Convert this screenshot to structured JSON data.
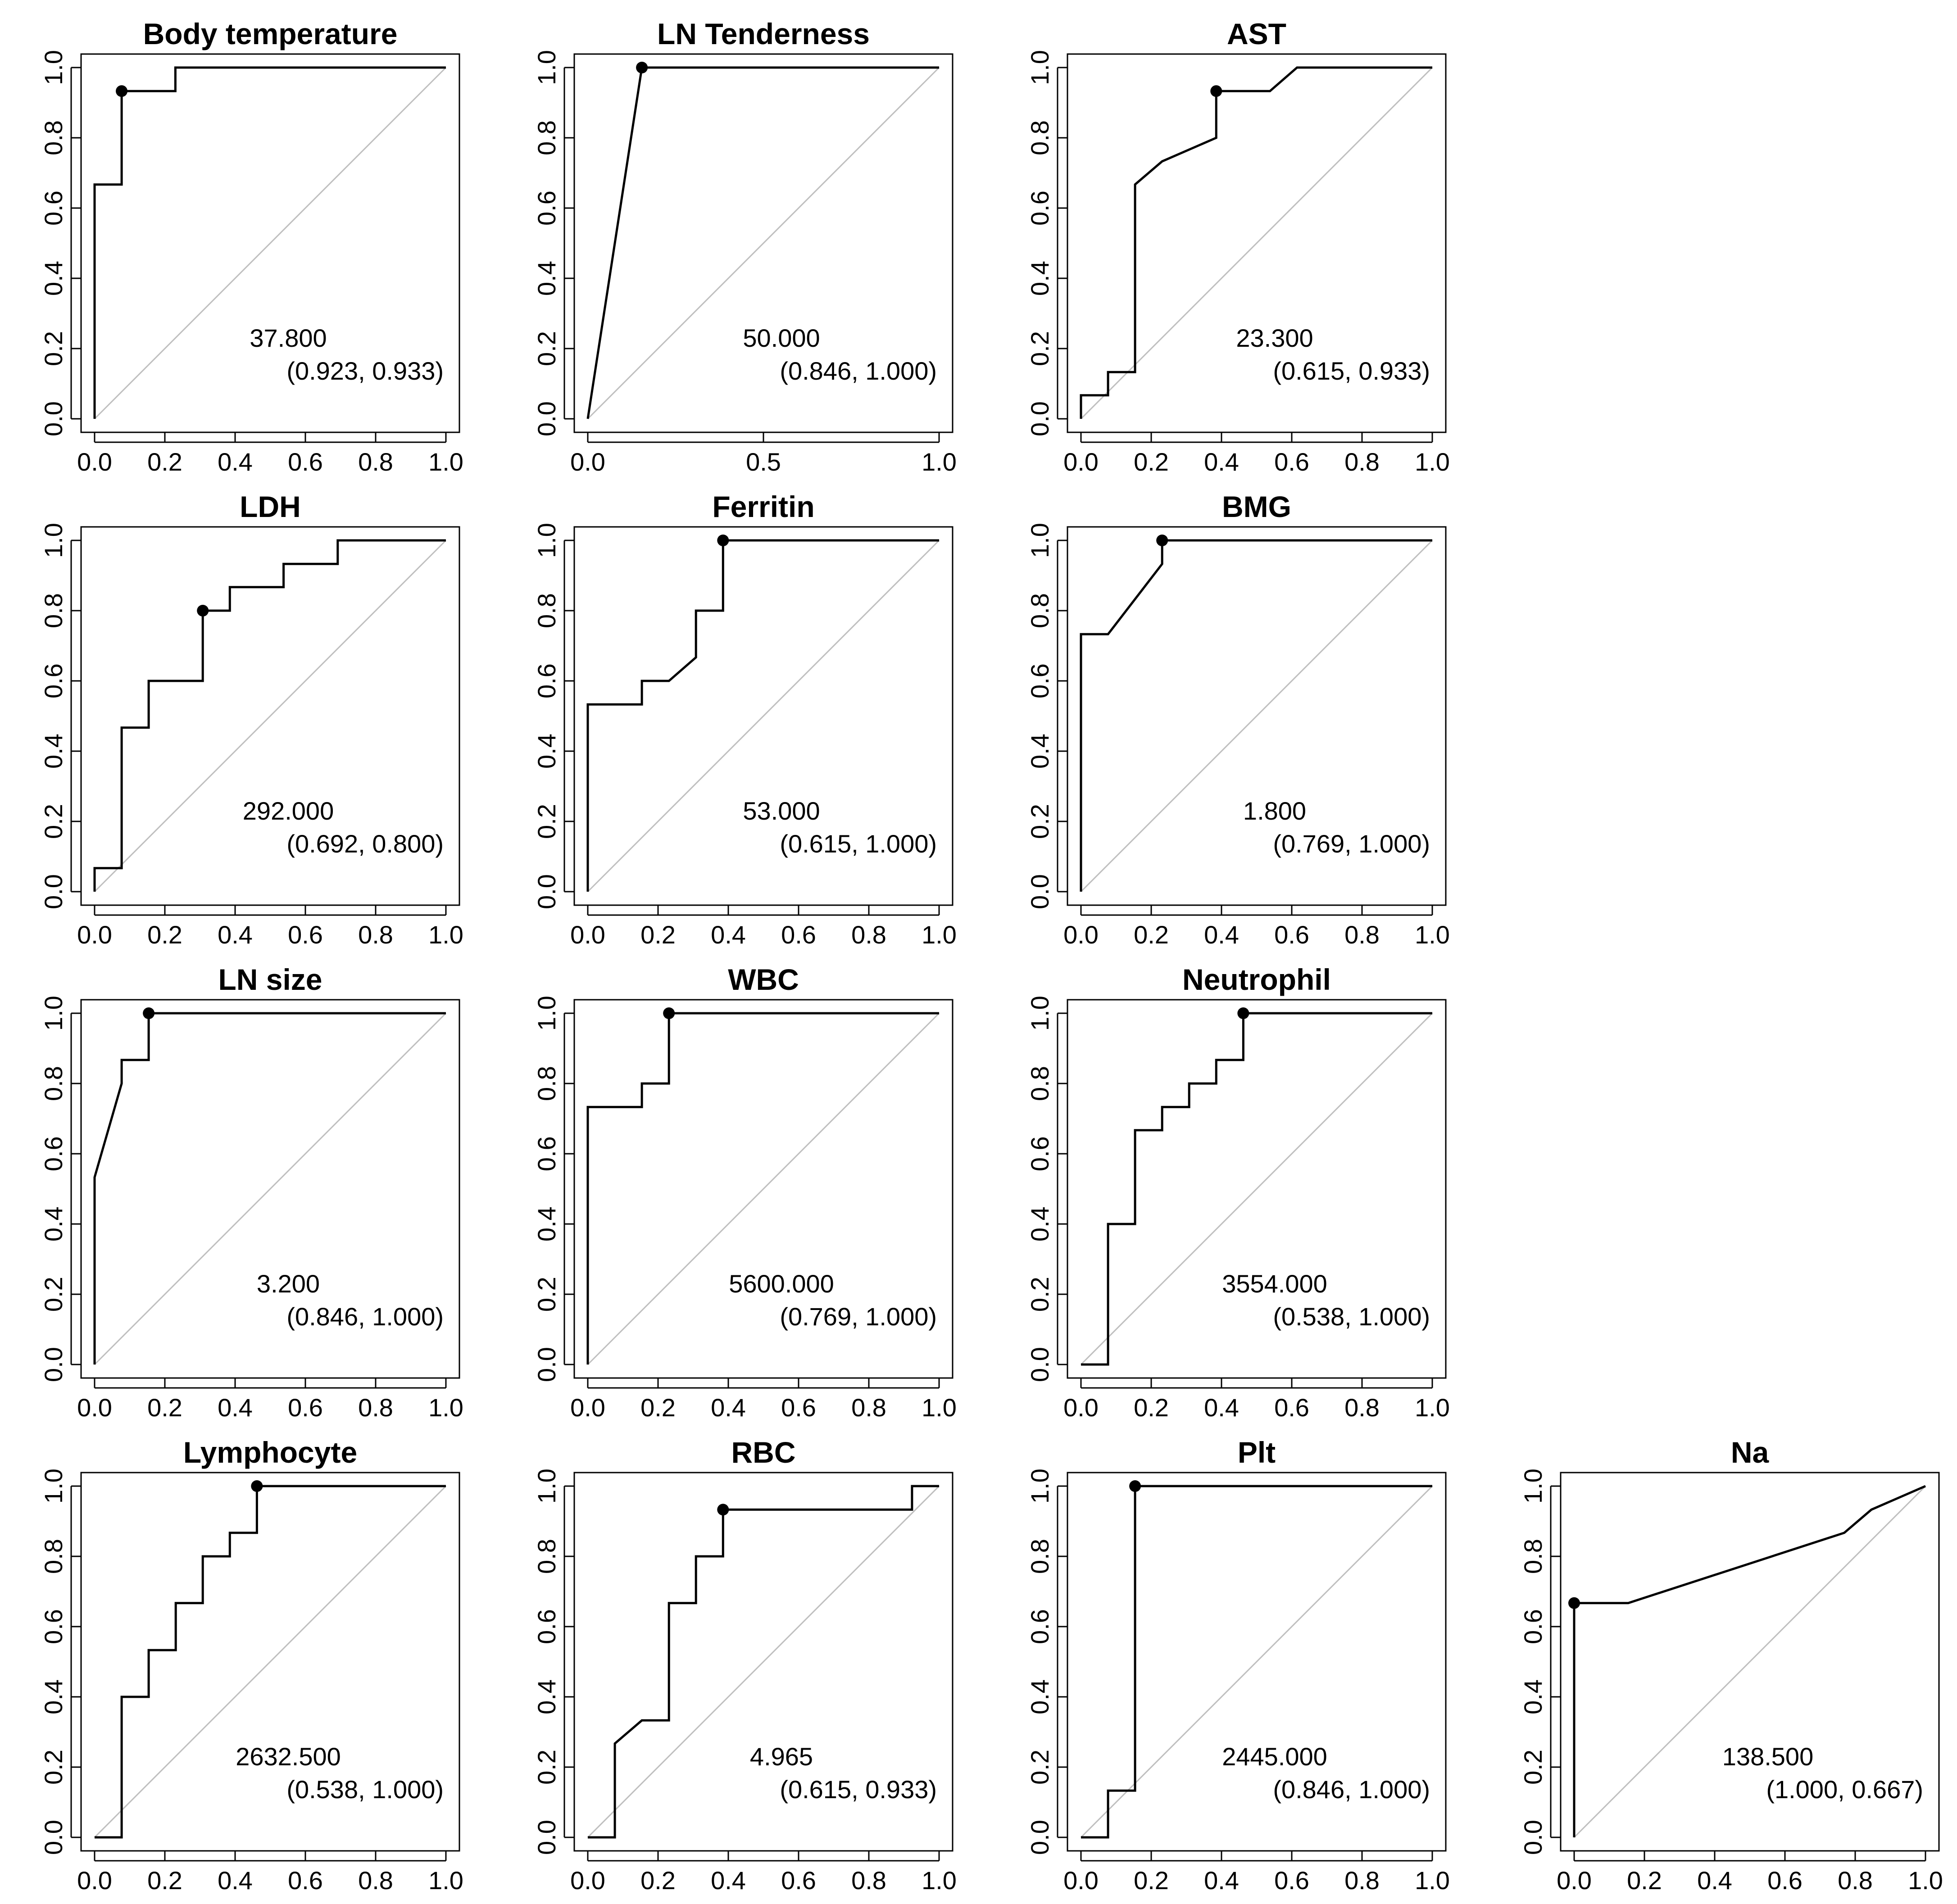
{
  "figure": {
    "colors": {
      "curve": "#000000",
      "diagonal": "#bfbfbf",
      "frame": "#000000",
      "background": "#ffffff"
    }
  },
  "chart_data": [
    {
      "type": "line",
      "id": "body-temperature",
      "title": "Body temperature",
      "xlim": [
        0,
        1
      ],
      "ylim": [
        0,
        1
      ],
      "xticks": [
        "0.0",
        "0.2",
        "0.4",
        "0.6",
        "0.8",
        "1.0"
      ],
      "yticks": [
        "0.0",
        "0.2",
        "0.4",
        "0.6",
        "0.8",
        "1.0"
      ],
      "curve": {
        "x": [
          0,
          0,
          0.077,
          0.077,
          0.23,
          0.23,
          1
        ],
        "y": [
          0,
          0.667,
          0.667,
          0.933,
          0.933,
          1,
          1
        ]
      },
      "point": {
        "x": 0.077,
        "y": 0.933
      },
      "threshold": "37.800",
      "spec_sens": "(0.923, 0.933)"
    },
    {
      "type": "line",
      "id": "ln-tenderness",
      "title": "LN Tenderness",
      "xlim": [
        0,
        1
      ],
      "ylim": [
        0,
        1
      ],
      "xticks": [
        "0.0",
        "0.5",
        "1.0"
      ],
      "yticks": [
        "0.0",
        "0.2",
        "0.4",
        "0.6",
        "0.8",
        "1.0"
      ],
      "curve": {
        "x": [
          0,
          0.154,
          1
        ],
        "y": [
          0,
          1,
          1
        ]
      },
      "point": {
        "x": 0.154,
        "y": 1
      },
      "threshold": "50.000",
      "spec_sens": "(0.846, 1.000)"
    },
    {
      "type": "line",
      "id": "ast",
      "title": "AST",
      "xlim": [
        0,
        1
      ],
      "ylim": [
        0,
        1
      ],
      "xticks": [
        "0.0",
        "0.2",
        "0.4",
        "0.6",
        "0.8",
        "1.0"
      ],
      "yticks": [
        "0.0",
        "0.2",
        "0.4",
        "0.6",
        "0.8",
        "1.0"
      ],
      "curve": {
        "x": [
          0,
          0,
          0.077,
          0.077,
          0.154,
          0.154,
          0.231,
          0.385,
          0.385,
          0.538,
          0.615,
          1
        ],
        "y": [
          0,
          0.067,
          0.067,
          0.133,
          0.133,
          0.667,
          0.733,
          0.8,
          0.933,
          0.933,
          1,
          1
        ]
      },
      "point": {
        "x": 0.385,
        "y": 0.933
      },
      "threshold": "23.300",
      "spec_sens": "(0.615, 0.933)"
    },
    {
      "type": "line",
      "id": "ldh",
      "title": "LDH",
      "xlim": [
        0,
        1
      ],
      "ylim": [
        0,
        1
      ],
      "xticks": [
        "0.0",
        "0.2",
        "0.4",
        "0.6",
        "0.8",
        "1.0"
      ],
      "yticks": [
        "0.0",
        "0.2",
        "0.4",
        "0.6",
        "0.8",
        "1.0"
      ],
      "curve": {
        "x": [
          0,
          0,
          0.077,
          0.077,
          0.154,
          0.154,
          0.308,
          0.308,
          0.385,
          0.385,
          0.538,
          0.538,
          0.692,
          0.692,
          1
        ],
        "y": [
          0,
          0.067,
          0.067,
          0.467,
          0.467,
          0.6,
          0.6,
          0.8,
          0.8,
          0.867,
          0.867,
          0.933,
          0.933,
          1,
          1
        ]
      },
      "point": {
        "x": 0.308,
        "y": 0.8
      },
      "threshold": "292.000",
      "spec_sens": "(0.692, 0.800)"
    },
    {
      "type": "line",
      "id": "ferritin",
      "title": "Ferritin",
      "xlim": [
        0,
        1
      ],
      "ylim": [
        0,
        1
      ],
      "xticks": [
        "0.0",
        "0.2",
        "0.4",
        "0.6",
        "0.8",
        "1.0"
      ],
      "yticks": [
        "0.0",
        "0.2",
        "0.4",
        "0.6",
        "0.8",
        "1.0"
      ],
      "curve": {
        "x": [
          0,
          0,
          0.154,
          0.154,
          0.231,
          0.308,
          0.308,
          0.385,
          0.385,
          1
        ],
        "y": [
          0,
          0.533,
          0.533,
          0.6,
          0.6,
          0.667,
          0.8,
          0.8,
          1,
          1
        ]
      },
      "point": {
        "x": 0.385,
        "y": 1
      },
      "threshold": "53.000",
      "spec_sens": "(0.615, 1.000)"
    },
    {
      "type": "line",
      "id": "bmg",
      "title": "BMG",
      "xlim": [
        0,
        1
      ],
      "ylim": [
        0,
        1
      ],
      "xticks": [
        "0.0",
        "0.2",
        "0.4",
        "0.6",
        "0.8",
        "1.0"
      ],
      "yticks": [
        "0.0",
        "0.2",
        "0.4",
        "0.6",
        "0.8",
        "1.0"
      ],
      "curve": {
        "x": [
          0,
          0,
          0.077,
          0.231,
          0.231,
          1
        ],
        "y": [
          0,
          0.733,
          0.733,
          0.933,
          1,
          1
        ]
      },
      "point": {
        "x": 0.231,
        "y": 1
      },
      "threshold": "1.800",
      "spec_sens": "(0.769, 1.000)"
    },
    {
      "type": "line",
      "id": "ln-size",
      "title": "LN size",
      "xlim": [
        0,
        1
      ],
      "ylim": [
        0,
        1
      ],
      "xticks": [
        "0.0",
        "0.2",
        "0.4",
        "0.6",
        "0.8",
        "1.0"
      ],
      "yticks": [
        "0.0",
        "0.2",
        "0.4",
        "0.6",
        "0.8",
        "1.0"
      ],
      "curve": {
        "x": [
          0,
          0,
          0.077,
          0.077,
          0.154,
          0.154,
          1
        ],
        "y": [
          0,
          0.533,
          0.8,
          0.867,
          0.867,
          1,
          1
        ]
      },
      "point": {
        "x": 0.154,
        "y": 1
      },
      "threshold": "3.200",
      "spec_sens": "(0.846, 1.000)"
    },
    {
      "type": "line",
      "id": "wbc",
      "title": "WBC",
      "xlim": [
        0,
        1
      ],
      "ylim": [
        0,
        1
      ],
      "xticks": [
        "0.0",
        "0.2",
        "0.4",
        "0.6",
        "0.8",
        "1.0"
      ],
      "yticks": [
        "0.0",
        "0.2",
        "0.4",
        "0.6",
        "0.8",
        "1.0"
      ],
      "curve": {
        "x": [
          0,
          0,
          0.154,
          0.154,
          0.231,
          0.231,
          1
        ],
        "y": [
          0,
          0.733,
          0.733,
          0.8,
          0.8,
          1,
          1
        ]
      },
      "point": {
        "x": 0.231,
        "y": 1
      },
      "threshold": "5600.000",
      "spec_sens": "(0.769, 1.000)"
    },
    {
      "type": "line",
      "id": "neutrophil",
      "title": "Neutrophil",
      "xlim": [
        0,
        1
      ],
      "ylim": [
        0,
        1
      ],
      "xticks": [
        "0.0",
        "0.2",
        "0.4",
        "0.6",
        "0.8",
        "1.0"
      ],
      "yticks": [
        "0.0",
        "0.2",
        "0.4",
        "0.6",
        "0.8",
        "1.0"
      ],
      "curve": {
        "x": [
          0,
          0.077,
          0.077,
          0.154,
          0.154,
          0.231,
          0.231,
          0.308,
          0.308,
          0.385,
          0.385,
          0.462,
          0.462,
          1
        ],
        "y": [
          0,
          0,
          0.4,
          0.4,
          0.667,
          0.667,
          0.733,
          0.733,
          0.8,
          0.8,
          0.867,
          0.867,
          1,
          1
        ]
      },
      "point": {
        "x": 0.462,
        "y": 1
      },
      "threshold": "3554.000",
      "spec_sens": "(0.538, 1.000)"
    },
    {
      "type": "line",
      "id": "lymphocyte",
      "title": "Lymphocyte",
      "xlim": [
        0,
        1
      ],
      "ylim": [
        0,
        1
      ],
      "xticks": [
        "0.0",
        "0.2",
        "0.4",
        "0.6",
        "0.8",
        "1.0"
      ],
      "yticks": [
        "0.0",
        "0.2",
        "0.4",
        "0.6",
        "0.8",
        "1.0"
      ],
      "curve": {
        "x": [
          0,
          0.077,
          0.077,
          0.154,
          0.154,
          0.231,
          0.231,
          0.308,
          0.308,
          0.385,
          0.385,
          0.462,
          0.462,
          1
        ],
        "y": [
          0,
          0,
          0.4,
          0.4,
          0.533,
          0.533,
          0.667,
          0.667,
          0.8,
          0.8,
          0.867,
          0.867,
          1,
          1
        ]
      },
      "point": {
        "x": 0.462,
        "y": 1
      },
      "threshold": "2632.500",
      "spec_sens": "(0.538, 1.000)"
    },
    {
      "type": "line",
      "id": "rbc",
      "title": "RBC",
      "xlim": [
        0,
        1
      ],
      "ylim": [
        0,
        1
      ],
      "xticks": [
        "0.0",
        "0.2",
        "0.4",
        "0.6",
        "0.8",
        "1.0"
      ],
      "yticks": [
        "0.0",
        "0.2",
        "0.4",
        "0.6",
        "0.8",
        "1.0"
      ],
      "curve": {
        "x": [
          0,
          0.077,
          0.077,
          0.154,
          0.231,
          0.231,
          0.308,
          0.308,
          0.385,
          0.385,
          0.923,
          0.923,
          1
        ],
        "y": [
          0,
          0,
          0.267,
          0.333,
          0.333,
          0.667,
          0.667,
          0.8,
          0.8,
          0.933,
          0.933,
          1,
          1
        ]
      },
      "point": {
        "x": 0.385,
        "y": 0.933
      },
      "threshold": "4.965",
      "spec_sens": "(0.615, 0.933)"
    },
    {
      "type": "line",
      "id": "plt",
      "title": "Plt",
      "xlim": [
        0,
        1
      ],
      "ylim": [
        0,
        1
      ],
      "xticks": [
        "0.0",
        "0.2",
        "0.4",
        "0.6",
        "0.8",
        "1.0"
      ],
      "yticks": [
        "0.0",
        "0.2",
        "0.4",
        "0.6",
        "0.8",
        "1.0"
      ],
      "curve": {
        "x": [
          0,
          0.077,
          0.077,
          0.154,
          0.154,
          1
        ],
        "y": [
          0,
          0,
          0.133,
          0.133,
          1,
          1
        ]
      },
      "point": {
        "x": 0.154,
        "y": 1
      },
      "threshold": "2445.000",
      "spec_sens": "(0.846, 1.000)"
    },
    {
      "type": "line",
      "id": "na",
      "title": "Na",
      "xlim": [
        0,
        1
      ],
      "ylim": [
        0,
        1
      ],
      "xticks": [
        "0.0",
        "0.2",
        "0.4",
        "0.6",
        "0.8",
        "1.0"
      ],
      "yticks": [
        "0.0",
        "0.2",
        "0.4",
        "0.6",
        "0.8",
        "1.0"
      ],
      "curve": {
        "x": [
          0,
          0,
          0.154,
          0.769,
          0.846,
          1
        ],
        "y": [
          0,
          0.667,
          0.667,
          0.867,
          0.933,
          1
        ]
      },
      "point": {
        "x": 0,
        "y": 0.667
      },
      "threshold": "138.500",
      "spec_sens": "(1.000, 0.667)"
    }
  ]
}
